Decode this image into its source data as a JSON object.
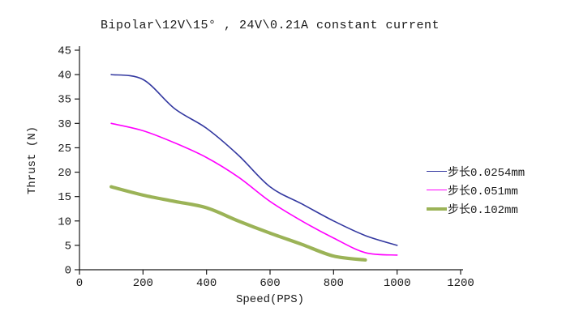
{
  "title": "Bipolar\\12V\\15° , 24V\\0.21A constant current",
  "chart_data": {
    "type": "line",
    "title": "Bipolar\\12V\\15° , 24V\\0.21A constant current",
    "xlabel": "Speed(PPS)",
    "ylabel": "Thrust (N)",
    "xlim": [
      0,
      1200
    ],
    "ylim": [
      0,
      45
    ],
    "xticks": [
      0,
      200,
      400,
      600,
      800,
      1000,
      1200
    ],
    "yticks": [
      0,
      5,
      10,
      15,
      20,
      25,
      30,
      35,
      40,
      45
    ],
    "grid": false,
    "legend_position": "right",
    "axis_color": "#1a1a1a",
    "text_color": "#1a1a1a",
    "background": "#ffffff",
    "series": [
      {
        "name": "步长0.0254mm",
        "color": "#3338a0",
        "stroke_width": 1.6,
        "x": [
          100,
          200,
          300,
          400,
          500,
          600,
          700,
          800,
          900,
          1000
        ],
        "y": [
          40,
          39,
          33,
          29,
          23.5,
          17,
          13.5,
          10,
          7,
          5
        ]
      },
      {
        "name": "步长0.051mm",
        "color": "#ff00ff",
        "stroke_width": 1.6,
        "x": [
          100,
          200,
          300,
          400,
          500,
          600,
          700,
          800,
          900,
          1000
        ],
        "y": [
          30,
          28.5,
          26,
          23,
          19,
          14,
          10,
          6.5,
          3.5,
          3
        ]
      },
      {
        "name": "步长0.102mm",
        "color": "#9bb357",
        "stroke_width": 4.2,
        "x": [
          100,
          200,
          300,
          400,
          500,
          600,
          700,
          800,
          900
        ],
        "y": [
          17,
          15.3,
          14,
          12.7,
          10,
          7.5,
          5.2,
          2.8,
          2
        ]
      }
    ]
  }
}
